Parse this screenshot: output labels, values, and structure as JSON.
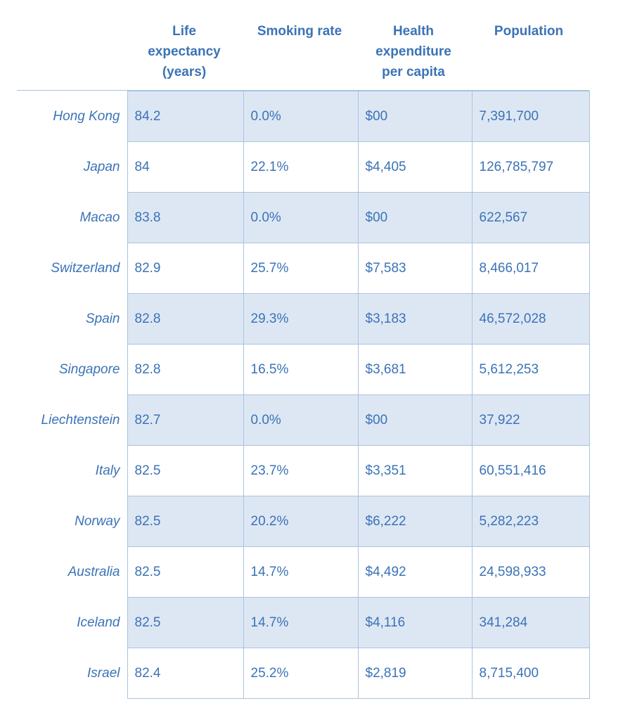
{
  "table": {
    "headers": [
      [
        "Life",
        "expectancy",
        "(years)"
      ],
      [
        "Smoking rate"
      ],
      [
        "Health",
        "expenditure",
        "per capita"
      ],
      [
        "Population"
      ]
    ],
    "rows": [
      {
        "country": "Hong Kong",
        "life": "84.2",
        "smoking": "0.0%",
        "health": "$00",
        "population": "7,391,700"
      },
      {
        "country": "Japan",
        "life": "84",
        "smoking": "22.1%",
        "health": "$4,405",
        "population": "126,785,797"
      },
      {
        "country": "Macao",
        "life": "83.8",
        "smoking": "0.0%",
        "health": "$00",
        "population": "622,567"
      },
      {
        "country": "Switzerland",
        "life": "82.9",
        "smoking": "25.7%",
        "health": "$7,583",
        "population": "8,466,017"
      },
      {
        "country": "Spain",
        "life": "82.8",
        "smoking": "29.3%",
        "health": "$3,183",
        "population": "46,572,028"
      },
      {
        "country": "Singapore",
        "life": "82.8",
        "smoking": "16.5%",
        "health": "$3,681",
        "population": "5,612,253"
      },
      {
        "country": "Liechtenstein",
        "life": "82.7",
        "smoking": "0.0%",
        "health": "$00",
        "population": "37,922"
      },
      {
        "country": "Italy",
        "life": "82.5",
        "smoking": "23.7%",
        "health": "$3,351",
        "population": "60,551,416"
      },
      {
        "country": "Norway",
        "life": "82.5",
        "smoking": "20.2%",
        "health": "$6,222",
        "population": "5,282,223"
      },
      {
        "country": "Australia",
        "life": "82.5",
        "smoking": "14.7%",
        "health": "$4,492",
        "population": "24,598,933"
      },
      {
        "country": "Iceland",
        "life": "82.5",
        "smoking": "14.7%",
        "health": "$4,116",
        "population": "341,284"
      },
      {
        "country": "Israel",
        "life": "82.4",
        "smoking": "25.2%",
        "health": "$2,819",
        "population": "8,715,400"
      }
    ]
  },
  "colors": {
    "text": "#3b73b6",
    "shade": "#dde7f4",
    "border": "#a9c3de"
  }
}
